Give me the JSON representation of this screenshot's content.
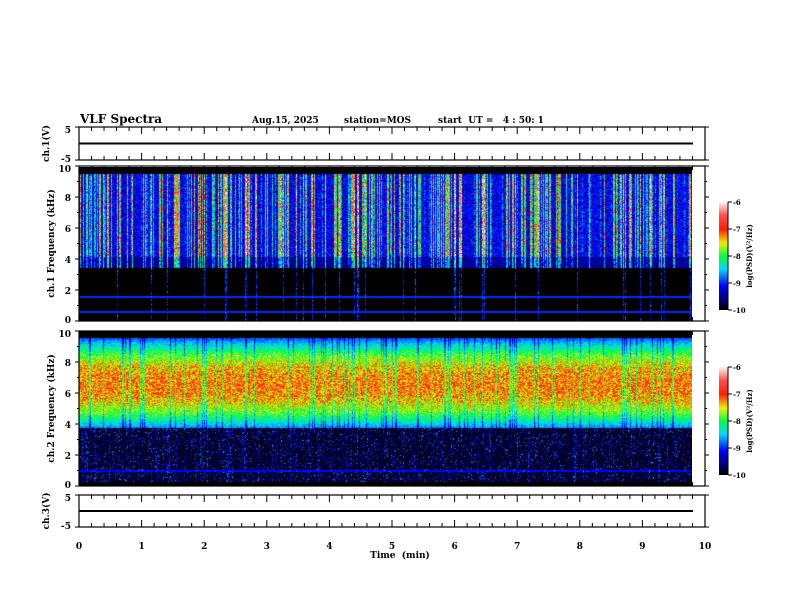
{
  "header": {
    "title": "VLF Spectra",
    "date": "Aug.15, 2025",
    "station": "station=MOS",
    "start_ut": "start  UT =   4 : 50: 1"
  },
  "chart_data": [
    {
      "type": "line",
      "name": "ch1-waveform",
      "ylabel": "ch.1(V)",
      "ylim": [
        -5,
        5
      ],
      "yticks": [
        "5",
        "-5"
      ],
      "baseline_value": 0
    },
    {
      "type": "heatmap",
      "name": "ch1-spectrogram",
      "ylabel": "ch.1  Frequency (kHz)",
      "ylim": [
        0,
        10
      ],
      "yticks": [
        "0",
        "2",
        "4",
        "6",
        "8",
        "10"
      ],
      "data_xlim": [
        0,
        9.8
      ],
      "colorbar": {
        "label": "log(PSD)(V²/Hz)",
        "range": [
          -10,
          -6
        ],
        "ticks": [
          "-6",
          "-7",
          "-8",
          "-9",
          "-10"
        ]
      }
    },
    {
      "type": "heatmap",
      "name": "ch2-spectrogram",
      "ylabel": "ch.2  Frequency (kHz)",
      "ylim": [
        0,
        10
      ],
      "yticks": [
        "0",
        "2",
        "4",
        "6",
        "8",
        "10"
      ],
      "data_xlim": [
        0,
        9.8
      ],
      "colorbar": {
        "label": "log(PSD)(V²/Hz)",
        "range": [
          -10,
          -6
        ],
        "ticks": [
          "-6",
          "-7",
          "-8",
          "-9",
          "-10"
        ]
      }
    },
    {
      "type": "line",
      "name": "ch3-waveform",
      "ylabel": "ch.3(V)",
      "ylim": [
        -5,
        5
      ],
      "yticks": [
        "5",
        "-5"
      ],
      "baseline_value": 0
    }
  ],
  "xaxis": {
    "label": "Time  (min)",
    "xlim": [
      0,
      10
    ],
    "ticks": [
      "0",
      "1",
      "2",
      "3",
      "4",
      "5",
      "6",
      "7",
      "8",
      "9",
      "10"
    ]
  }
}
